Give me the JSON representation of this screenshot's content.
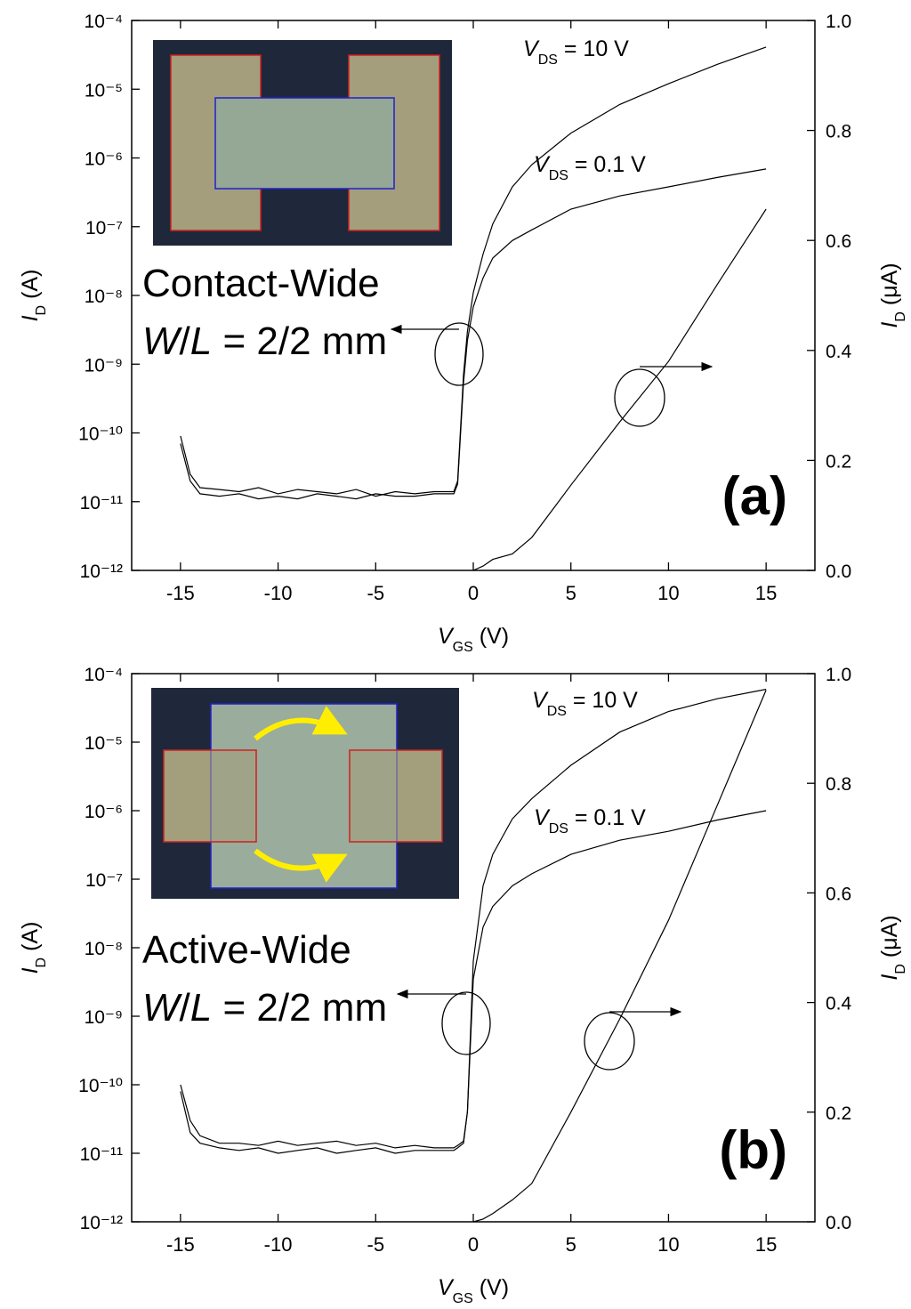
{
  "chart_data": [
    {
      "type": "line",
      "log_scale": true,
      "panel_label": "(a)",
      "device": "Contact-Wide",
      "geometry": [
        "W",
        "/",
        "L",
        " = 2/2 mm"
      ],
      "xlabel": [
        "V",
        "GS",
        " (V)"
      ],
      "ylabel": [
        "I",
        "D",
        " (A)"
      ],
      "y2label": [
        "I",
        "D",
        " (μA)"
      ],
      "annotations": [
        [
          "V",
          "DS",
          " = 10 V"
        ],
        [
          "V",
          "DS",
          " = 0.1 V"
        ]
      ],
      "xlim": [
        -17.5,
        17.5
      ],
      "xticks": [
        -15,
        -10,
        -5,
        0,
        5,
        10,
        15
      ],
      "ylim": [
        1e-12,
        0.0001
      ],
      "yticks": [
        {
          "value": 1e-12,
          "label": "10⁻¹²"
        },
        {
          "value": 1e-11,
          "label": "10⁻¹¹"
        },
        {
          "value": 1e-10,
          "label": "10⁻¹⁰"
        },
        {
          "value": 1e-09,
          "label": "10⁻⁹"
        },
        {
          "value": 1e-08,
          "label": "10⁻⁸"
        },
        {
          "value": 1e-07,
          "label": "10⁻⁷"
        },
        {
          "value": 1e-06,
          "label": "10⁻⁶"
        },
        {
          "value": 1e-05,
          "label": "10⁻⁵"
        },
        {
          "value": 0.0001,
          "label": "10⁻⁴"
        }
      ],
      "y2lim": [
        0,
        1
      ],
      "y2ticks": [
        {
          "value": 0,
          "label": "0.0"
        },
        0.2,
        0.4,
        0.6,
        0.8,
        {
          "value": 1,
          "label": "1.0"
        }
      ],
      "x": [
        -15,
        -14.5,
        -14,
        -13,
        -12,
        -11,
        -10,
        -9,
        -8,
        -7,
        -6,
        -5,
        -4,
        -3,
        -2,
        -1,
        -0.8,
        -0.5,
        -0.3,
        0,
        0.5,
        1,
        2,
        3,
        5,
        7.5,
        10,
        12.5,
        15
      ],
      "series": [
        {
          "color": "#000000",
          "axis": "y",
          "values": [
            9e-11,
            2.5e-11,
            1.6e-11,
            1.5e-11,
            1.4e-11,
            1.6e-11,
            1.3e-11,
            1.5e-11,
            1.4e-11,
            1.3e-11,
            1.5e-11,
            1.2e-11,
            1.4e-11,
            1.3e-11,
            1.4e-11,
            1.4e-11,
            2e-11,
            7e-10,
            3e-09,
            1.1e-08,
            4e-08,
            1.1e-07,
            3.8e-07,
            8e-07,
            2.3e-06,
            6e-06,
            1.2e-05,
            2.3e-05,
            4.1e-05
          ]
        },
        {
          "color": "#000000",
          "axis": "y",
          "values": [
            7e-11,
            2e-11,
            1.3e-11,
            1.2e-11,
            1.3e-11,
            1.1e-11,
            1.2e-11,
            1.1e-11,
            1.3e-11,
            1.2e-11,
            1.1e-11,
            1.3e-11,
            1.2e-11,
            1.2e-11,
            1.3e-11,
            1.3e-11,
            1.8e-11,
            5.4e-10,
            2.2e-09,
            6.8e-09,
            1.8e-08,
            3.5e-08,
            6.3e-08,
            9e-08,
            1.8e-07,
            2.8e-07,
            3.8e-07,
            5.2e-07,
            6.9e-07
          ]
        },
        {
          "color": "#000000",
          "axis": "y2",
          "values": [
            null,
            null,
            null,
            null,
            null,
            null,
            null,
            null,
            null,
            null,
            null,
            null,
            null,
            null,
            null,
            null,
            null,
            null,
            null,
            0,
            0.008,
            0.02,
            0.03,
            0.06,
            0.155,
            0.27,
            0.38,
            0.52,
            0.657
          ]
        }
      ]
    },
    {
      "type": "line",
      "log_scale": true,
      "panel_label": "(b)",
      "device": "Active-Wide",
      "geometry": [
        "W",
        "/",
        "L",
        " = 2/2 mm"
      ],
      "xlabel": [
        "V",
        "GS",
        " (V)"
      ],
      "ylabel": [
        "I",
        "D",
        " (A)"
      ],
      "y2label": [
        "I",
        "D",
        " (μA)"
      ],
      "annotations": [
        [
          "V",
          "DS",
          " = 10 V"
        ],
        [
          "V",
          "DS",
          " = 0.1 V"
        ]
      ],
      "xlim": [
        -17.5,
        17.5
      ],
      "xticks": [
        -15,
        -10,
        -5,
        0,
        5,
        10,
        15
      ],
      "ylim": [
        1e-12,
        0.0001
      ],
      "yticks": [
        {
          "value": 1e-12,
          "label": "10⁻¹²"
        },
        {
          "value": 1e-11,
          "label": "10⁻¹¹"
        },
        {
          "value": 1e-10,
          "label": "10⁻¹⁰"
        },
        {
          "value": 1e-09,
          "label": "10⁻⁹"
        },
        {
          "value": 1e-08,
          "label": "10⁻⁸"
        },
        {
          "value": 1e-07,
          "label": "10⁻⁷"
        },
        {
          "value": 1e-06,
          "label": "10⁻⁶"
        },
        {
          "value": 1e-05,
          "label": "10⁻⁵"
        },
        {
          "value": 0.0001,
          "label": "10⁻⁴"
        }
      ],
      "y2lim": [
        0,
        1
      ],
      "y2ticks": [
        {
          "value": 0,
          "label": "0.0"
        },
        0.2,
        0.4,
        0.6,
        0.8,
        {
          "value": 1,
          "label": "1.0"
        }
      ],
      "x": [
        -15,
        -14.5,
        -14,
        -13,
        -12,
        -11,
        -10,
        -9,
        -8,
        -7,
        -6,
        -5,
        -4,
        -3,
        -2,
        -1,
        -0.8,
        -0.5,
        -0.3,
        0,
        0.5,
        1,
        2,
        3,
        5,
        7.5,
        10,
        12.5,
        15
      ],
      "series": [
        {
          "color": "#000000",
          "axis": "y",
          "values": [
            1e-10,
            3e-11,
            1.8e-11,
            1.4e-11,
            1.4e-11,
            1.3e-11,
            1.5e-11,
            1.3e-11,
            1.4e-11,
            1.5e-11,
            1.3e-11,
            1.4e-11,
            1.2e-11,
            1.3e-11,
            1.2e-11,
            1.2e-11,
            1.3e-11,
            1.5e-11,
            4e-11,
            6.4e-09,
            8e-08,
            2.3e-07,
            7.6e-07,
            1.5e-06,
            4.6e-06,
            1.4e-05,
            2.8e-05,
            4.3e-05,
            5.9e-05
          ]
        },
        {
          "color": "#000000",
          "axis": "y",
          "values": [
            8e-11,
            2e-11,
            1.4e-11,
            1.2e-11,
            1.1e-11,
            1.2e-11,
            1e-11,
            1.1e-11,
            1.2e-11,
            1e-11,
            1.1e-11,
            1.2e-11,
            1e-11,
            1.1e-11,
            1.1e-11,
            1.1e-11,
            1.2e-11,
            1.4e-11,
            4e-11,
            3.5e-09,
            2e-08,
            4e-08,
            8e-08,
            1.2e-07,
            2.3e-07,
            3.7e-07,
            5e-07,
            7.3e-07,
            1e-06
          ]
        },
        {
          "color": "#000000",
          "axis": "y2",
          "values": [
            null,
            null,
            null,
            null,
            null,
            null,
            null,
            null,
            null,
            null,
            null,
            null,
            null,
            null,
            null,
            null,
            null,
            null,
            null,
            0,
            0.005,
            0.015,
            0.04,
            0.07,
            0.2,
            0.37,
            0.55,
            0.76,
            0.97
          ]
        }
      ]
    }
  ]
}
